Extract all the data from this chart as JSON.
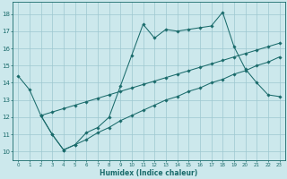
{
  "xlabel": "Humidex (Indice chaleur)",
  "bg_color": "#cce8ec",
  "grid_color": "#9ec8d0",
  "line_color": "#1a6b6b",
  "xlim": [
    -0.5,
    23.5
  ],
  "ylim": [
    9.5,
    18.7
  ],
  "xticks": [
    0,
    1,
    2,
    3,
    4,
    5,
    6,
    7,
    8,
    9,
    10,
    11,
    12,
    13,
    14,
    15,
    16,
    17,
    18,
    19,
    20,
    21,
    22,
    23
  ],
  "yticks": [
    10,
    11,
    12,
    13,
    14,
    15,
    16,
    17,
    18
  ],
  "line1_x": [
    0,
    1,
    2,
    3,
    4,
    5,
    6,
    7,
    8,
    9,
    10,
    11,
    12,
    13,
    14,
    15,
    16,
    17,
    18,
    19,
    20,
    21,
    22,
    23
  ],
  "line1_y": [
    14.4,
    13.6,
    12.1,
    11.0,
    10.1,
    10.4,
    11.1,
    11.4,
    12.0,
    13.8,
    15.6,
    17.4,
    16.6,
    17.1,
    17.0,
    17.1,
    17.2,
    17.3,
    18.1,
    16.1,
    14.8,
    14.0,
    13.3,
    13.2
  ],
  "line2_x": [
    2,
    3,
    4,
    5,
    6,
    7,
    8,
    9,
    10,
    11,
    12,
    13,
    14,
    15,
    16,
    17,
    18,
    19,
    20,
    21,
    22,
    23
  ],
  "line2_y": [
    12.1,
    12.3,
    12.5,
    12.7,
    12.9,
    13.1,
    13.3,
    13.5,
    13.7,
    13.9,
    14.1,
    14.3,
    14.5,
    14.7,
    14.9,
    15.1,
    15.3,
    15.5,
    15.7,
    15.9,
    16.1,
    16.3
  ],
  "line3_x": [
    2,
    3,
    4,
    5,
    6,
    7,
    8,
    9,
    10,
    11,
    12,
    13,
    14,
    15,
    16,
    17,
    18,
    19,
    20,
    21,
    22,
    23
  ],
  "line3_y": [
    12.1,
    11.0,
    10.1,
    10.4,
    10.7,
    11.1,
    11.4,
    11.8,
    12.1,
    12.4,
    12.7,
    13.0,
    13.2,
    13.5,
    13.7,
    14.0,
    14.2,
    14.5,
    14.7,
    15.0,
    15.2,
    15.5
  ]
}
